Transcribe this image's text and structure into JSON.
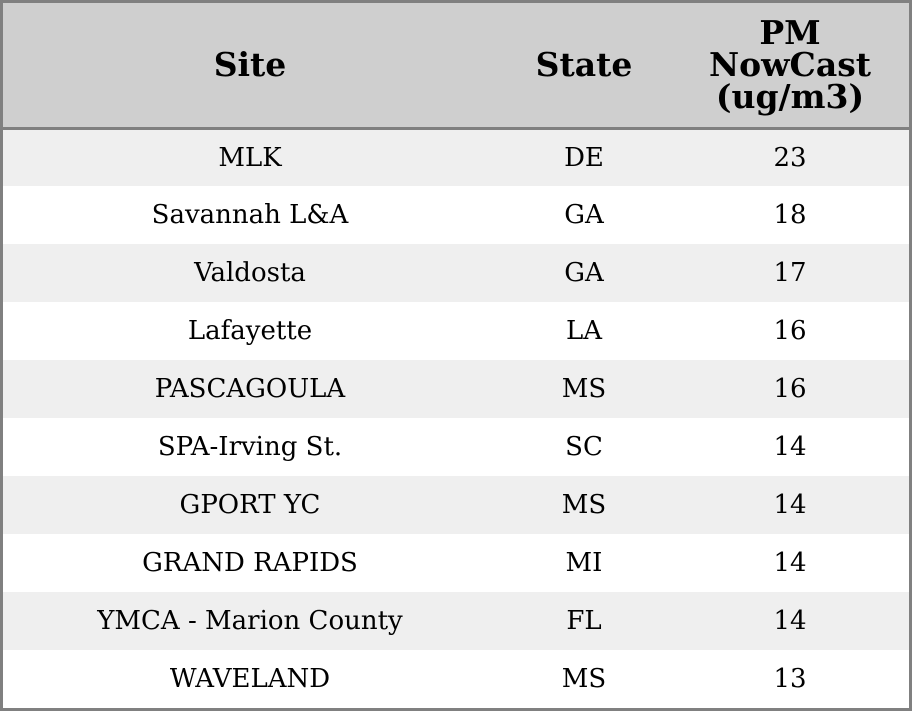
{
  "columns": {
    "site": "Site",
    "state": "State",
    "pm_line1": "PM",
    "pm_line2": "NowCast",
    "pm_line3": "(ug/m3)"
  },
  "rows": [
    {
      "site": "MLK",
      "state": "DE",
      "pm": "23"
    },
    {
      "site": "Savannah L&A",
      "state": "GA",
      "pm": "18"
    },
    {
      "site": "Valdosta",
      "state": "GA",
      "pm": "17"
    },
    {
      "site": "Lafayette",
      "state": "LA",
      "pm": "16"
    },
    {
      "site": "PASCAGOULA",
      "state": "MS",
      "pm": "16"
    },
    {
      "site": "SPA-Irving St.",
      "state": "SC",
      "pm": "14"
    },
    {
      "site": "GPORT YC",
      "state": "MS",
      "pm": "14"
    },
    {
      "site": "GRAND RAPIDS",
      "state": "MI",
      "pm": "14"
    },
    {
      "site": "YMCA - Marion County",
      "state": "FL",
      "pm": "14"
    },
    {
      "site": "WAVELAND",
      "state": "MS",
      "pm": "13"
    }
  ]
}
